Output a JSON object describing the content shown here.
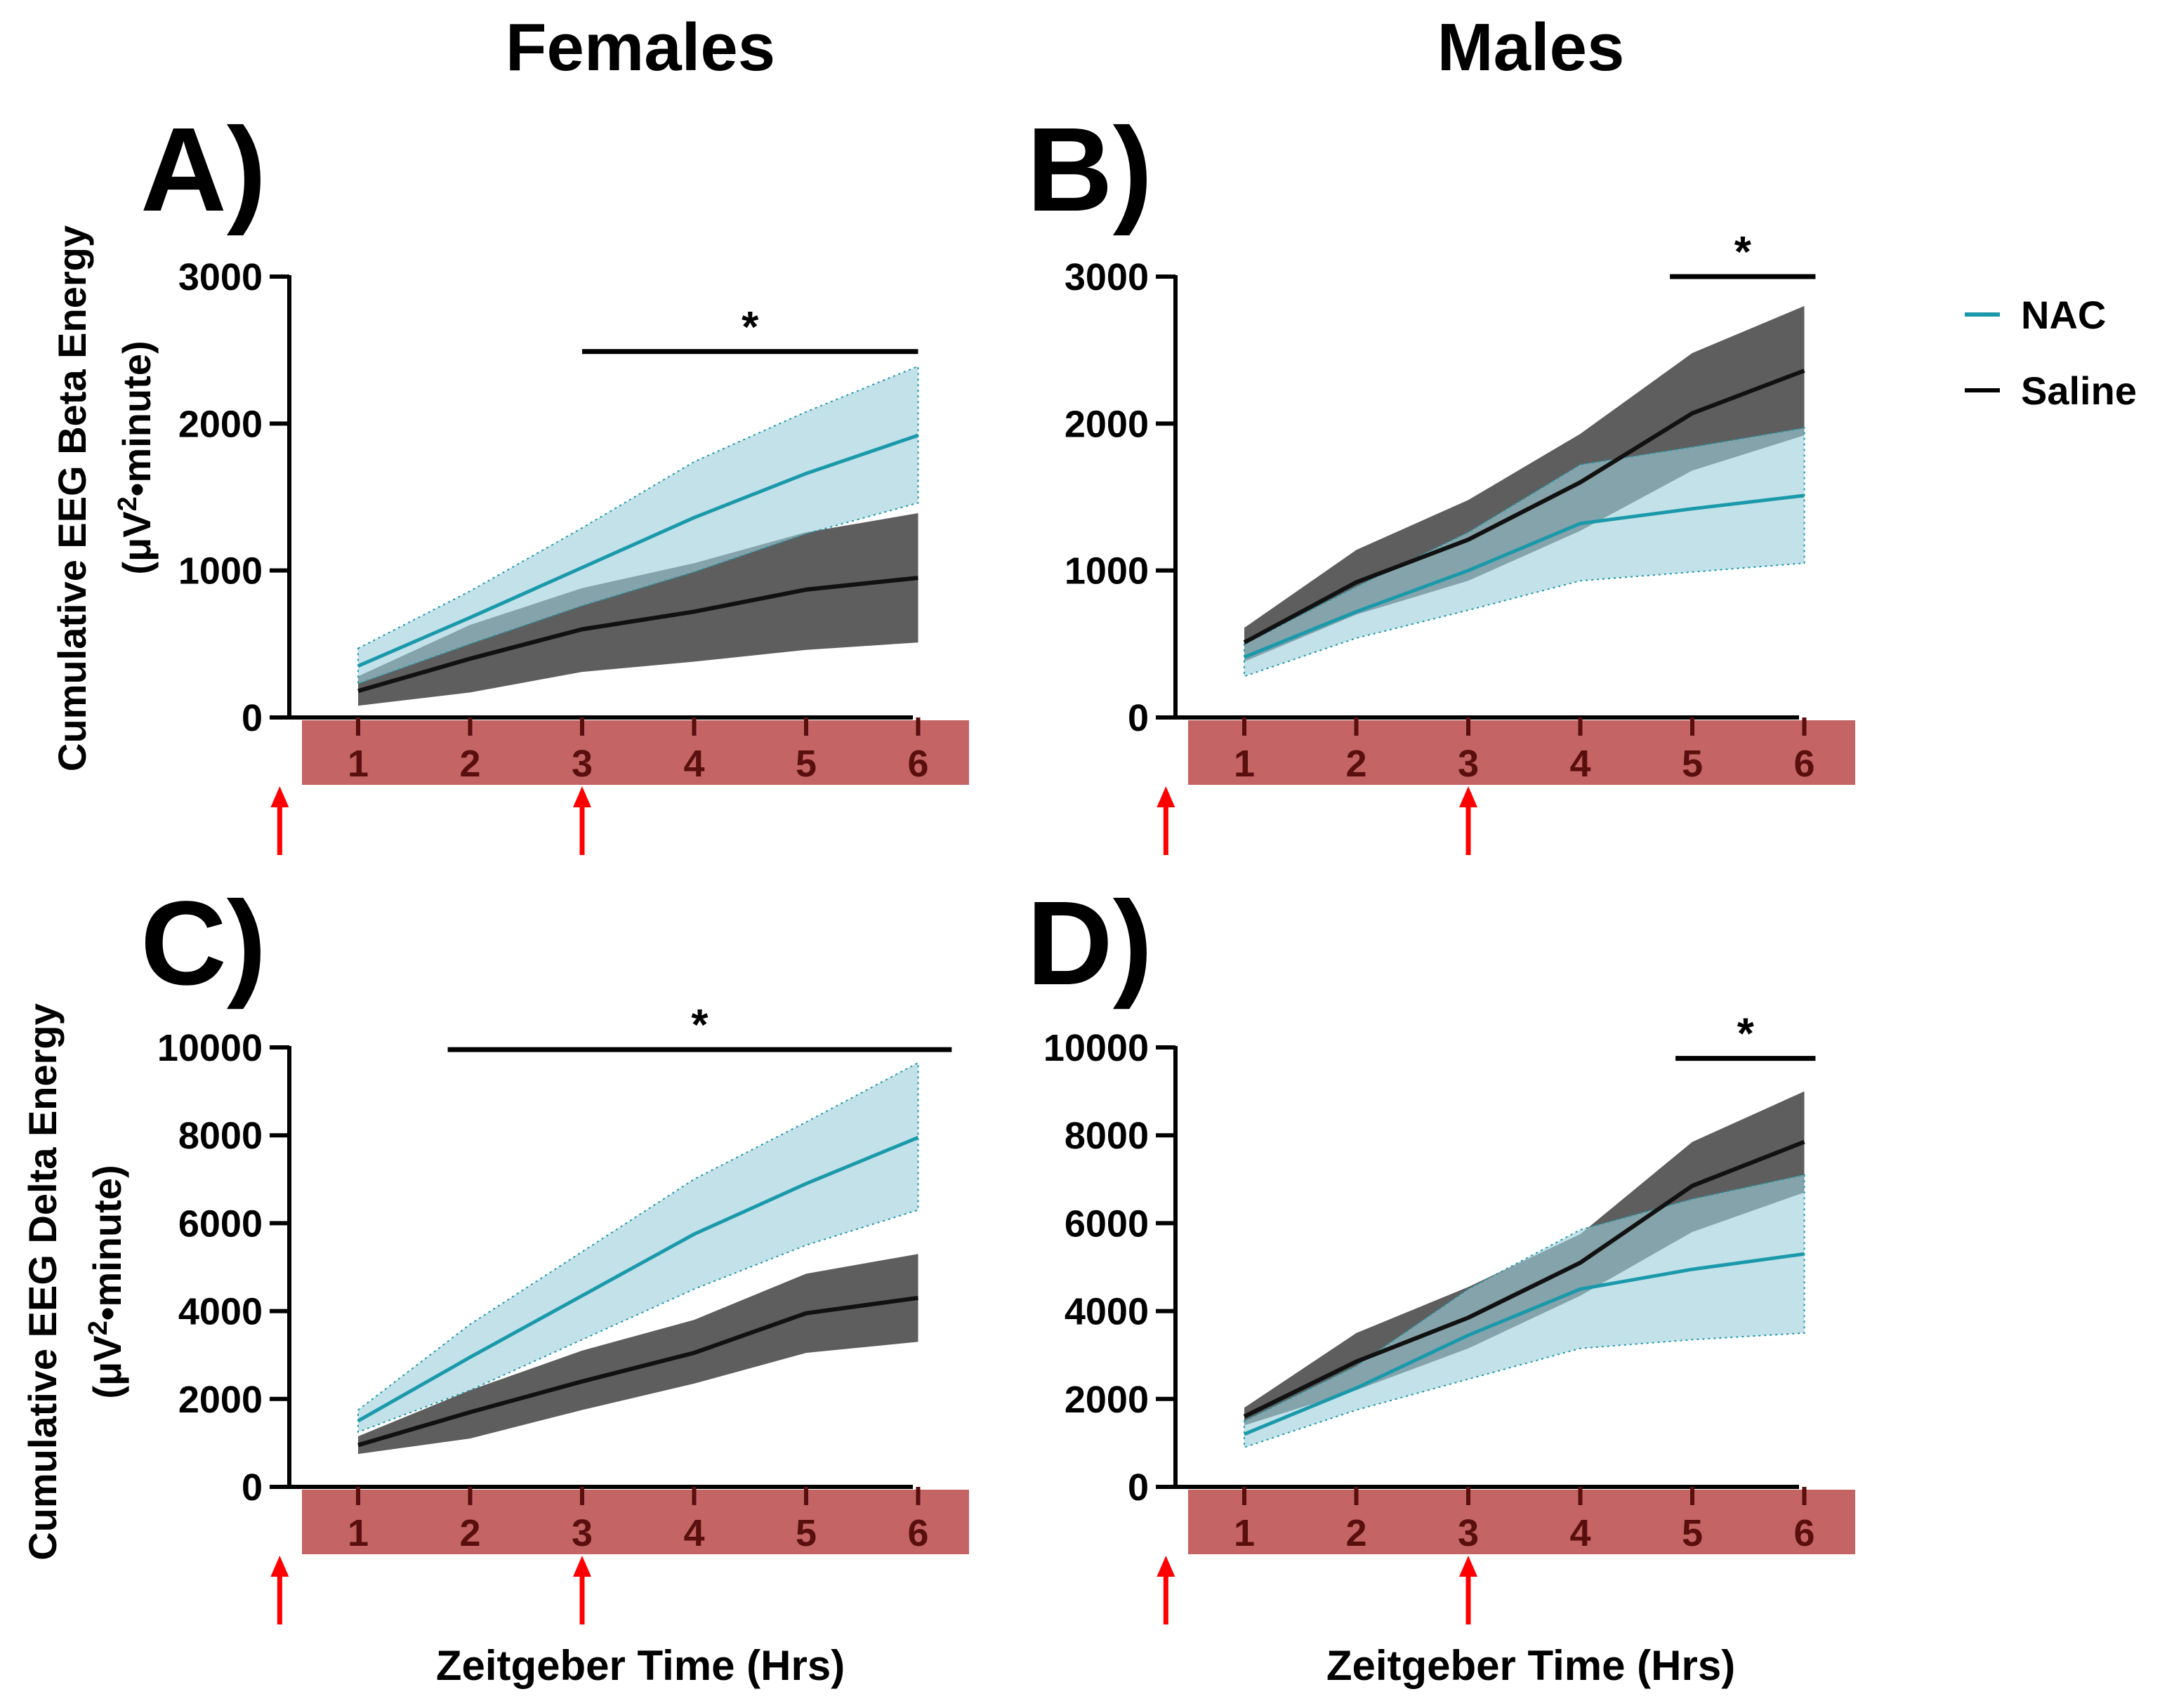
{
  "column_titles": {
    "left": "Females",
    "right": "Males"
  },
  "y_axis_titles": {
    "beta": {
      "line1": "Cumulative EEG Beta Energy",
      "line2_pre": "(μV",
      "line2_sup": "2",
      "line2_post": "•minute)"
    },
    "delta": {
      "line1": "Cumulative EEG Delta Energy",
      "line2_pre": "(μV",
      "line2_sup": "2",
      "line2_post": "•minute)"
    }
  },
  "x_axis_title": "Zeitgeber Time (Hrs)",
  "legend": [
    {
      "label": "NAC",
      "color": "#1a99aa"
    },
    {
      "label": "Saline",
      "color": "#000000"
    }
  ],
  "colors": {
    "nac_line": "#1a99aa",
    "nac_band": "#9ecfda",
    "saline_line": "#111111",
    "saline_band": "#5e5e5e",
    "overlap_band": "#4f8794",
    "dark_phase_bar": "#c46464",
    "dark_phase_ticks": "#5a0f0f",
    "injection_arrow": "#ff0000"
  },
  "significance_marker": "*",
  "injection_arrows_at_zt": [
    0.3,
    3
  ],
  "chart_data": [
    {
      "panel": "A)",
      "type": "area",
      "sex": "Females",
      "measure": "Beta",
      "title": "A)",
      "xlabel": "",
      "ylabel": "Cumulative EEG Beta Energy (μV²•minute)",
      "x": [
        1,
        2,
        3,
        4,
        5,
        6
      ],
      "x_tick_labels": [
        "1",
        "2",
        "3",
        "4",
        "5",
        "6"
      ],
      "ylim": [
        0,
        3000
      ],
      "y_ticks": [
        0,
        1000,
        2000,
        3000
      ],
      "y_tick_labels": [
        "0",
        "1000",
        "2000",
        "3000"
      ],
      "series": [
        {
          "name": "NAC",
          "values": [
            350,
            680,
            1020,
            1360,
            1660,
            1920
          ],
          "upper": [
            470,
            860,
            1290,
            1740,
            2080,
            2390
          ],
          "lower": [
            230,
            500,
            760,
            990,
            1250,
            1460
          ]
        },
        {
          "name": "Saline",
          "values": [
            180,
            400,
            600,
            720,
            870,
            950
          ],
          "upper": [
            280,
            630,
            880,
            1050,
            1260,
            1390
          ],
          "lower": [
            80,
            170,
            310,
            380,
            460,
            510
          ]
        }
      ],
      "significance": {
        "label": "*",
        "x_start": 3,
        "x_end": 6,
        "y": 2490
      }
    },
    {
      "panel": "B)",
      "type": "area",
      "sex": "Males",
      "measure": "Beta",
      "title": "B)",
      "xlabel": "",
      "ylabel": "",
      "x": [
        1,
        2,
        3,
        4,
        5,
        6
      ],
      "x_tick_labels": [
        "1",
        "2",
        "3",
        "4",
        "5",
        "6"
      ],
      "ylim": [
        0,
        3000
      ],
      "y_ticks": [
        0,
        1000,
        2000,
        3000
      ],
      "y_tick_labels": [
        "0",
        "1000",
        "2000",
        "3000"
      ],
      "series": [
        {
          "name": "NAC",
          "values": [
            410,
            720,
            1000,
            1320,
            1420,
            1510
          ],
          "upper": [
            500,
            890,
            1260,
            1720,
            1840,
            1970
          ],
          "lower": [
            280,
            540,
            730,
            930,
            990,
            1050
          ]
        },
        {
          "name": "Saline",
          "values": [
            510,
            920,
            1210,
            1600,
            2070,
            2360
          ],
          "upper": [
            610,
            1140,
            1480,
            1930,
            2480,
            2800
          ],
          "lower": [
            380,
            700,
            930,
            1270,
            1680,
            1920
          ]
        }
      ],
      "significance": {
        "label": "*",
        "x_start": 4.8,
        "x_end": 6.1,
        "y": 3000
      }
    },
    {
      "panel": "C)",
      "type": "area",
      "sex": "Females",
      "measure": "Delta",
      "title": "C)",
      "xlabel": "Zeitgeber Time (Hrs)",
      "ylabel": "Cumulative EEG Delta Energy (μV²•minute)",
      "x": [
        1,
        2,
        3,
        4,
        5,
        6
      ],
      "x_tick_labels": [
        "1",
        "2",
        "3",
        "4",
        "5",
        "6"
      ],
      "ylim": [
        0,
        10000
      ],
      "y_ticks": [
        0,
        2000,
        4000,
        6000,
        8000,
        10000
      ],
      "y_tick_labels": [
        "0",
        "2000",
        "4000",
        "6000",
        "8000",
        "10000"
      ],
      "series": [
        {
          "name": "NAC",
          "values": [
            1500,
            2950,
            4350,
            5750,
            6900,
            7950
          ],
          "upper": [
            1750,
            3700,
            5350,
            7000,
            8300,
            9650
          ],
          "lower": [
            1250,
            2200,
            3350,
            4500,
            5500,
            6300
          ]
        },
        {
          "name": "Saline",
          "values": [
            950,
            1700,
            2400,
            3050,
            3950,
            4300
          ],
          "upper": [
            1150,
            2200,
            3100,
            3800,
            4850,
            5300
          ],
          "lower": [
            750,
            1100,
            1750,
            2350,
            3050,
            3300
          ]
        }
      ],
      "significance": {
        "label": "*",
        "x_start": 1.8,
        "x_end": 6.3,
        "y": 9950
      }
    },
    {
      "panel": "D)",
      "type": "area",
      "sex": "Males",
      "measure": "Delta",
      "title": "D)",
      "xlabel": "Zeitgeber Time (Hrs)",
      "ylabel": "",
      "x": [
        1,
        2,
        3,
        4,
        5,
        6
      ],
      "x_tick_labels": [
        "1",
        "2",
        "3",
        "4",
        "5",
        "6"
      ],
      "ylim": [
        0,
        10000
      ],
      "y_ticks": [
        0,
        2000,
        4000,
        6000,
        8000,
        10000
      ],
      "y_tick_labels": [
        "0",
        "2000",
        "4000",
        "6000",
        "8000",
        "10000"
      ],
      "series": [
        {
          "name": "NAC",
          "values": [
            1200,
            2250,
            3450,
            4500,
            4950,
            5300
          ],
          "upper": [
            1500,
            2750,
            4500,
            5850,
            6550,
            7100
          ],
          "lower": [
            900,
            1750,
            2450,
            3150,
            3350,
            3500
          ]
        },
        {
          "name": "Saline",
          "values": [
            1600,
            2850,
            3850,
            5100,
            6850,
            7850
          ],
          "upper": [
            1800,
            3500,
            4550,
            5750,
            7850,
            9000
          ],
          "lower": [
            1400,
            2200,
            3150,
            4350,
            5800,
            6700
          ]
        }
      ],
      "significance": {
        "label": "*",
        "x_start": 4.85,
        "x_end": 6.1,
        "y": 9750
      }
    }
  ]
}
